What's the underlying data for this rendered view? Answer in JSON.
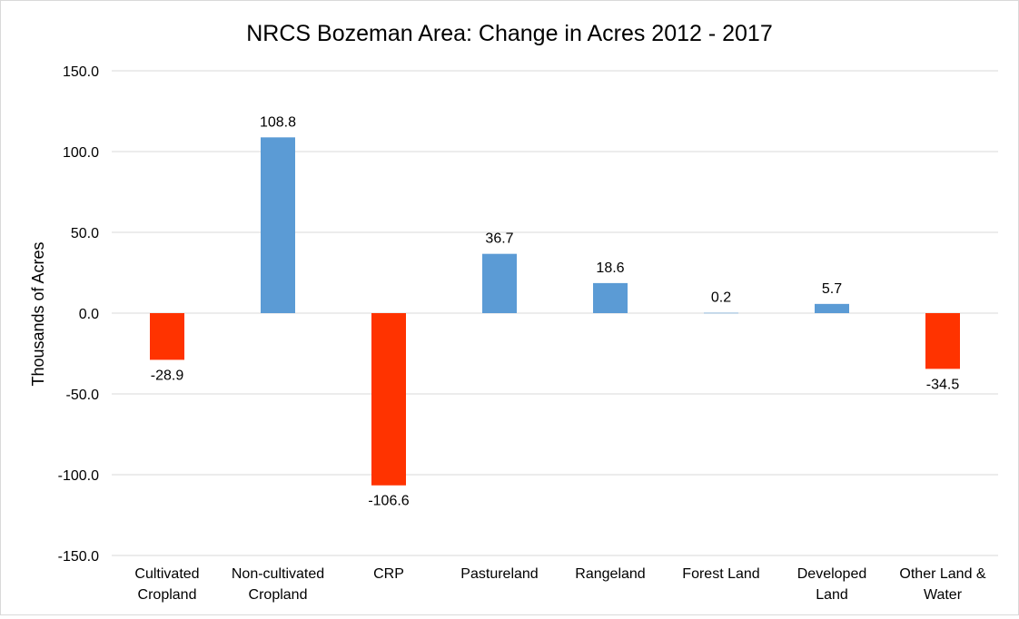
{
  "chart_data": {
    "type": "bar",
    "title": "NRCS Bozeman Area: Change in Acres 2012 - 2017",
    "xlabel": "",
    "ylabel": "Thousands of Acres",
    "categories": [
      [
        "Cultivated",
        "Cropland"
      ],
      [
        "Non-cultivated",
        "Cropland"
      ],
      [
        "CRP"
      ],
      [
        "Pastureland"
      ],
      [
        "Rangeland"
      ],
      [
        "Forest Land"
      ],
      [
        "Developed",
        "Land"
      ],
      [
        "Other Land &",
        "Water"
      ]
    ],
    "values": [
      -28.9,
      108.8,
      -106.6,
      36.7,
      18.6,
      0.2,
      5.7,
      -34.5
    ],
    "data_labels": [
      "-28.9",
      "108.8",
      "-106.6",
      "36.7",
      "18.6",
      "0.2",
      "5.7",
      "-34.5"
    ],
    "ylim": [
      -150,
      150
    ],
    "yticks": [
      150,
      100,
      50,
      0,
      -50,
      -100,
      -150
    ],
    "ytick_labels": [
      "150.0",
      "100.0",
      "50.0",
      "0.0",
      "-50.0",
      "-100.0",
      "-150.0"
    ],
    "grid": true,
    "colors": {
      "positive": "#5b9bd5",
      "negative": "#ff3300",
      "grid": "#d9d9d9"
    }
  }
}
